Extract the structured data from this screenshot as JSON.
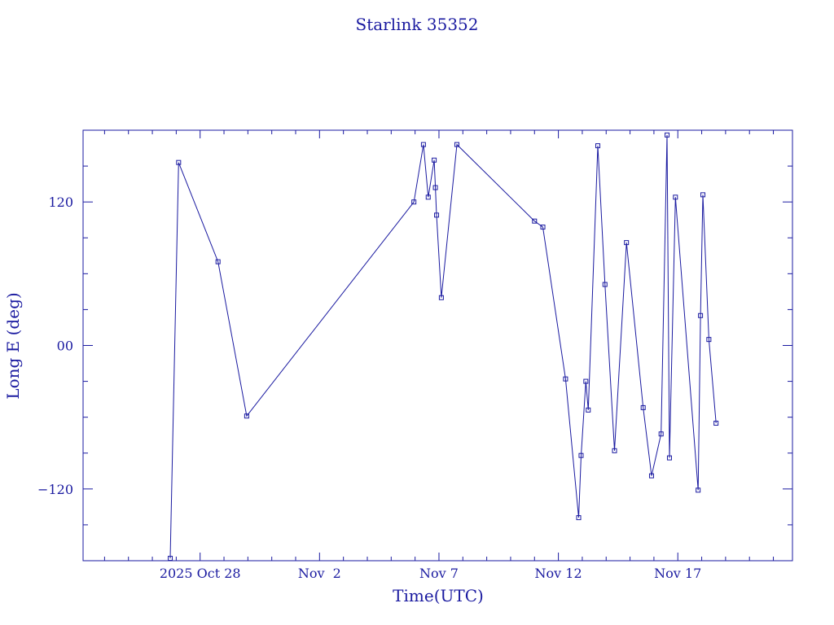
{
  "chart_data": {
    "type": "line",
    "title": "Starlink 35352",
    "xlabel": "Time(UTC)",
    "ylabel": "Long E (deg)",
    "x_tick_labels": [
      {
        "label": "2025 Oct 28",
        "day": 0
      },
      {
        "label": "Nov  2",
        "day": 5
      },
      {
        "label": "Nov 7",
        "day": 10
      },
      {
        "label": "Nov 12",
        "day": 15
      },
      {
        "label": "Nov 17",
        "day": 20
      }
    ],
    "y_tick_labels": [
      {
        "label": "120",
        "value": 120
      },
      {
        "label": "00",
        "value": 0
      },
      {
        "label": "−120",
        "value": -120
      }
    ],
    "xlim_days_from_2025_10_28": [
      -4.9,
      24.8
    ],
    "ylim": [
      -180,
      180
    ],
    "y_minor_step": 30,
    "x_minor_step_days": 1,
    "marker": "square",
    "color": "#1a1aa0",
    "grid": false,
    "series": [
      {
        "values": [
          {
            "day": -1.25,
            "lon": -178
          },
          {
            "day": -0.9,
            "lon": 153
          },
          {
            "day": 0.75,
            "lon": 70
          },
          {
            "day": 1.95,
            "lon": -59
          },
          {
            "day": 8.95,
            "lon": 120
          },
          {
            "day": 9.35,
            "lon": 168
          },
          {
            "day": 9.55,
            "lon": 124
          },
          {
            "day": 9.8,
            "lon": 155
          },
          {
            "day": 9.85,
            "lon": 132
          },
          {
            "day": 9.9,
            "lon": 109
          },
          {
            "day": 10.1,
            "lon": 40
          },
          {
            "day": 10.75,
            "lon": 168
          },
          {
            "day": 14.0,
            "lon": 104
          },
          {
            "day": 14.35,
            "lon": 99
          },
          {
            "day": 15.3,
            "lon": -28
          },
          {
            "day": 15.85,
            "lon": -144
          },
          {
            "day": 15.95,
            "lon": -92
          },
          {
            "day": 16.15,
            "lon": -30
          },
          {
            "day": 16.25,
            "lon": -54
          },
          {
            "day": 16.65,
            "lon": 167
          },
          {
            "day": 16.95,
            "lon": 51
          },
          {
            "day": 17.35,
            "lon": -88
          },
          {
            "day": 17.85,
            "lon": 86
          },
          {
            "day": 18.55,
            "lon": -52
          },
          {
            "day": 18.9,
            "lon": -109
          },
          {
            "day": 19.3,
            "lon": -74
          },
          {
            "day": 19.55,
            "lon": 176
          },
          {
            "day": 19.65,
            "lon": -94
          },
          {
            "day": 19.9,
            "lon": 124
          },
          {
            "day": 20.85,
            "lon": -121
          },
          {
            "day": 20.95,
            "lon": 25
          },
          {
            "day": 21.05,
            "lon": 126
          },
          {
            "day": 21.3,
            "lon": 5
          },
          {
            "day": 21.6,
            "lon": -65
          }
        ]
      }
    ]
  }
}
